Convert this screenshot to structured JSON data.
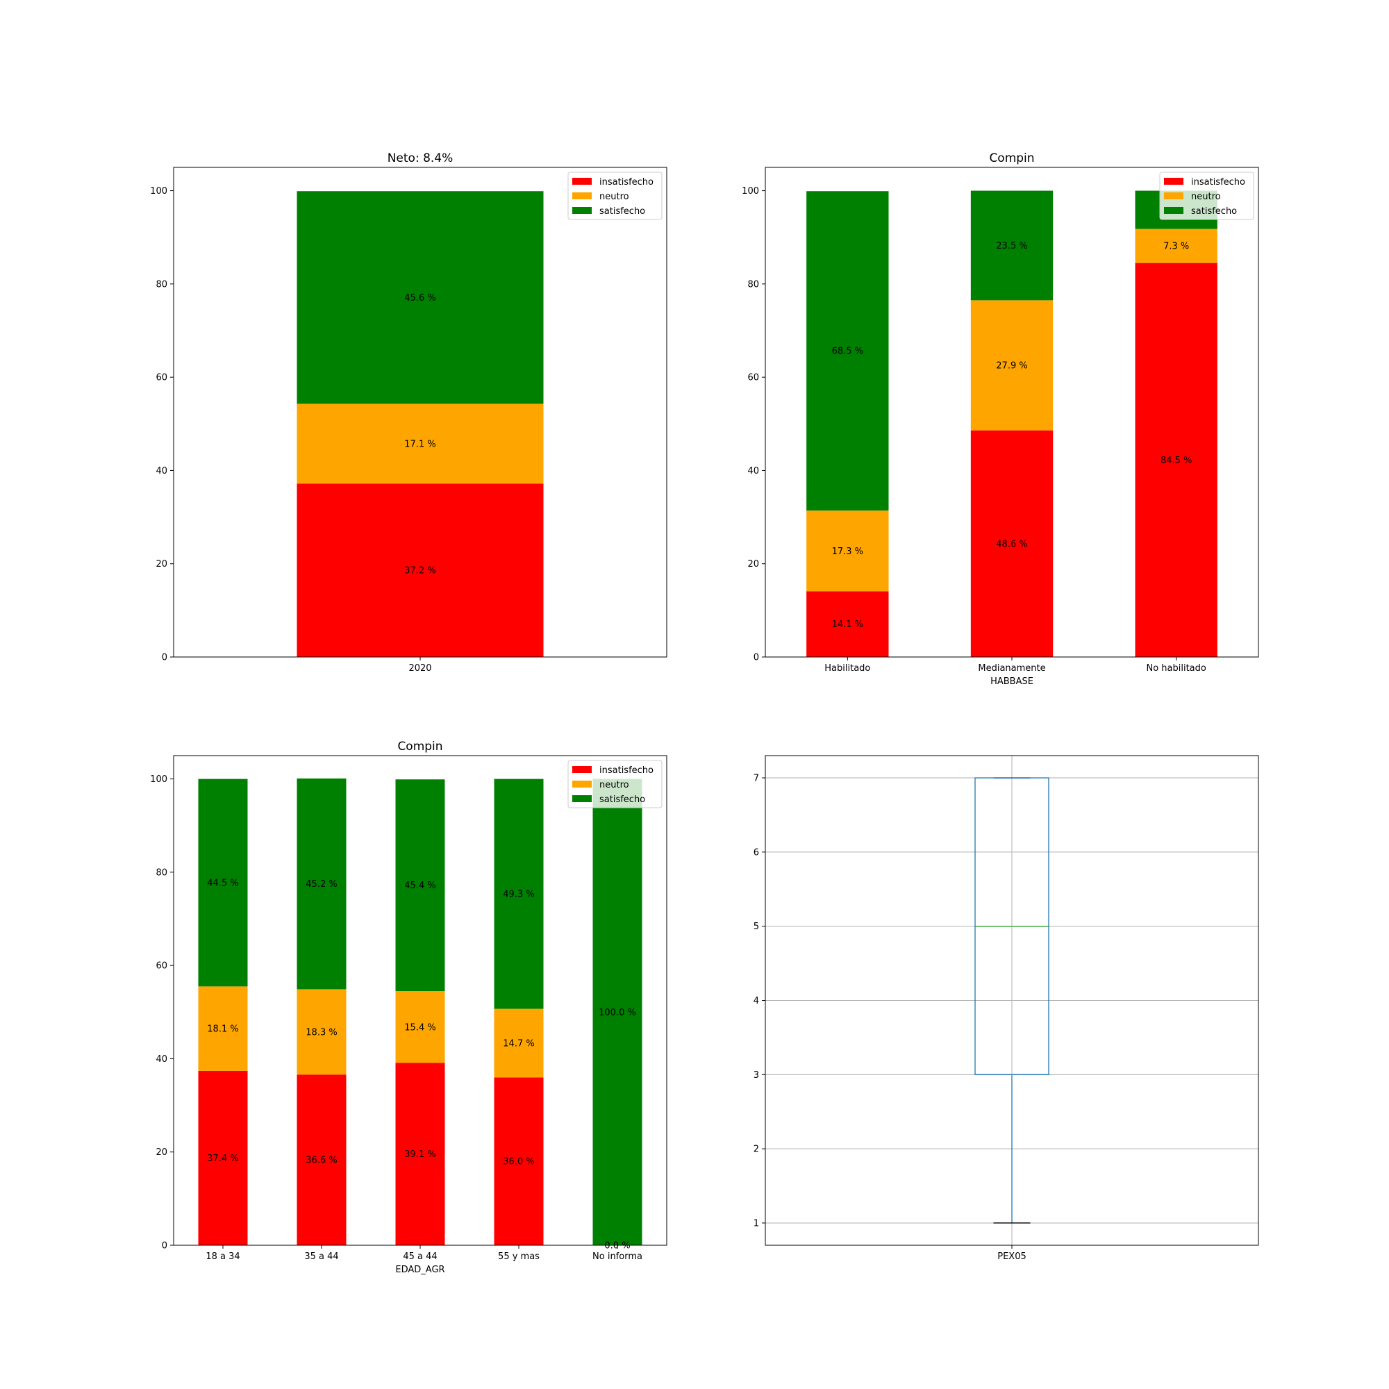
{
  "colors": {
    "insatisfecho": "#ff0000",
    "neutro": "#ffa500",
    "satisfecho": "#008000",
    "box": "#1f77b4",
    "median": "#2ca02c",
    "grid": "#b0b0b0"
  },
  "chart_data": [
    {
      "type": "bar",
      "stacked": true,
      "title": "Neto: 8.4%",
      "xlabel": "",
      "ylabel": "",
      "categories": [
        "2020"
      ],
      "ylim": [
        0,
        105
      ],
      "yticks": [
        0,
        20,
        40,
        60,
        80,
        100
      ],
      "legend": {
        "placement": "top-right",
        "entries": [
          "insatisfecho",
          "neutro",
          "satisfecho"
        ]
      },
      "series": [
        {
          "name": "insatisfecho",
          "values": [
            37.2
          ],
          "labels": [
            "37.2 %"
          ]
        },
        {
          "name": "neutro",
          "values": [
            17.1
          ],
          "labels": [
            "17.1 %"
          ]
        },
        {
          "name": "satisfecho",
          "values": [
            45.6
          ],
          "labels": [
            "45.6 %"
          ]
        }
      ]
    },
    {
      "type": "bar",
      "stacked": true,
      "title": "Compin",
      "xlabel": "HABBASE",
      "ylabel": "",
      "categories": [
        "Habilitado",
        "Medianamente",
        "No habilitado"
      ],
      "ylim": [
        0,
        105
      ],
      "yticks": [
        0,
        20,
        40,
        60,
        80,
        100
      ],
      "legend": {
        "placement": "top-right",
        "entries": [
          "insatisfecho",
          "neutro",
          "satisfecho"
        ]
      },
      "series": [
        {
          "name": "insatisfecho",
          "values": [
            14.1,
            48.6,
            84.5
          ],
          "labels": [
            "14.1 %",
            "48.6 %",
            "84.5 %"
          ]
        },
        {
          "name": "neutro",
          "values": [
            17.3,
            27.9,
            7.3
          ],
          "labels": [
            "17.3 %",
            "27.9 %",
            "7.3 %"
          ]
        },
        {
          "name": "satisfecho",
          "values": [
            68.5,
            23.5,
            8.2
          ],
          "labels": [
            "68.5 %",
            "23.5 %",
            ""
          ]
        }
      ]
    },
    {
      "type": "bar",
      "stacked": true,
      "title": "Compin",
      "xlabel": "EDAD_AGR",
      "ylabel": "",
      "categories": [
        "18 a 34",
        "35 a 44",
        "45 a 44",
        "55 y mas",
        "No informa"
      ],
      "ylim": [
        0,
        105
      ],
      "yticks": [
        0,
        20,
        40,
        60,
        80,
        100
      ],
      "legend": {
        "placement": "top-right",
        "entries": [
          "insatisfecho",
          "neutro",
          "satisfecho"
        ]
      },
      "series": [
        {
          "name": "insatisfecho",
          "values": [
            37.4,
            36.6,
            39.1,
            36.0,
            0.0
          ],
          "labels": [
            "37.4 %",
            "36.6 %",
            "39.1 %",
            "36.0 %",
            "0.0 %"
          ]
        },
        {
          "name": "neutro",
          "values": [
            18.1,
            18.3,
            15.4,
            14.7,
            0.0
          ],
          "labels": [
            "18.1 %",
            "18.3 %",
            "15.4 %",
            "14.7 %",
            ""
          ]
        },
        {
          "name": "satisfecho",
          "values": [
            44.5,
            45.2,
            45.4,
            49.3,
            100.0
          ],
          "labels": [
            "44.5 %",
            "45.2 %",
            "45.4 %",
            "49.3 %",
            "100.0 %"
          ]
        }
      ]
    },
    {
      "type": "box",
      "title": "",
      "xlabel": "",
      "ylabel": "",
      "categories": [
        "PEX05"
      ],
      "grid": true,
      "ylim": [
        0.7,
        7.3
      ],
      "yticks": [
        1,
        2,
        3,
        4,
        5,
        6,
        7
      ],
      "box": {
        "min": 1,
        "q1": 3,
        "median": 5,
        "q3": 7,
        "max": 7
      }
    }
  ]
}
